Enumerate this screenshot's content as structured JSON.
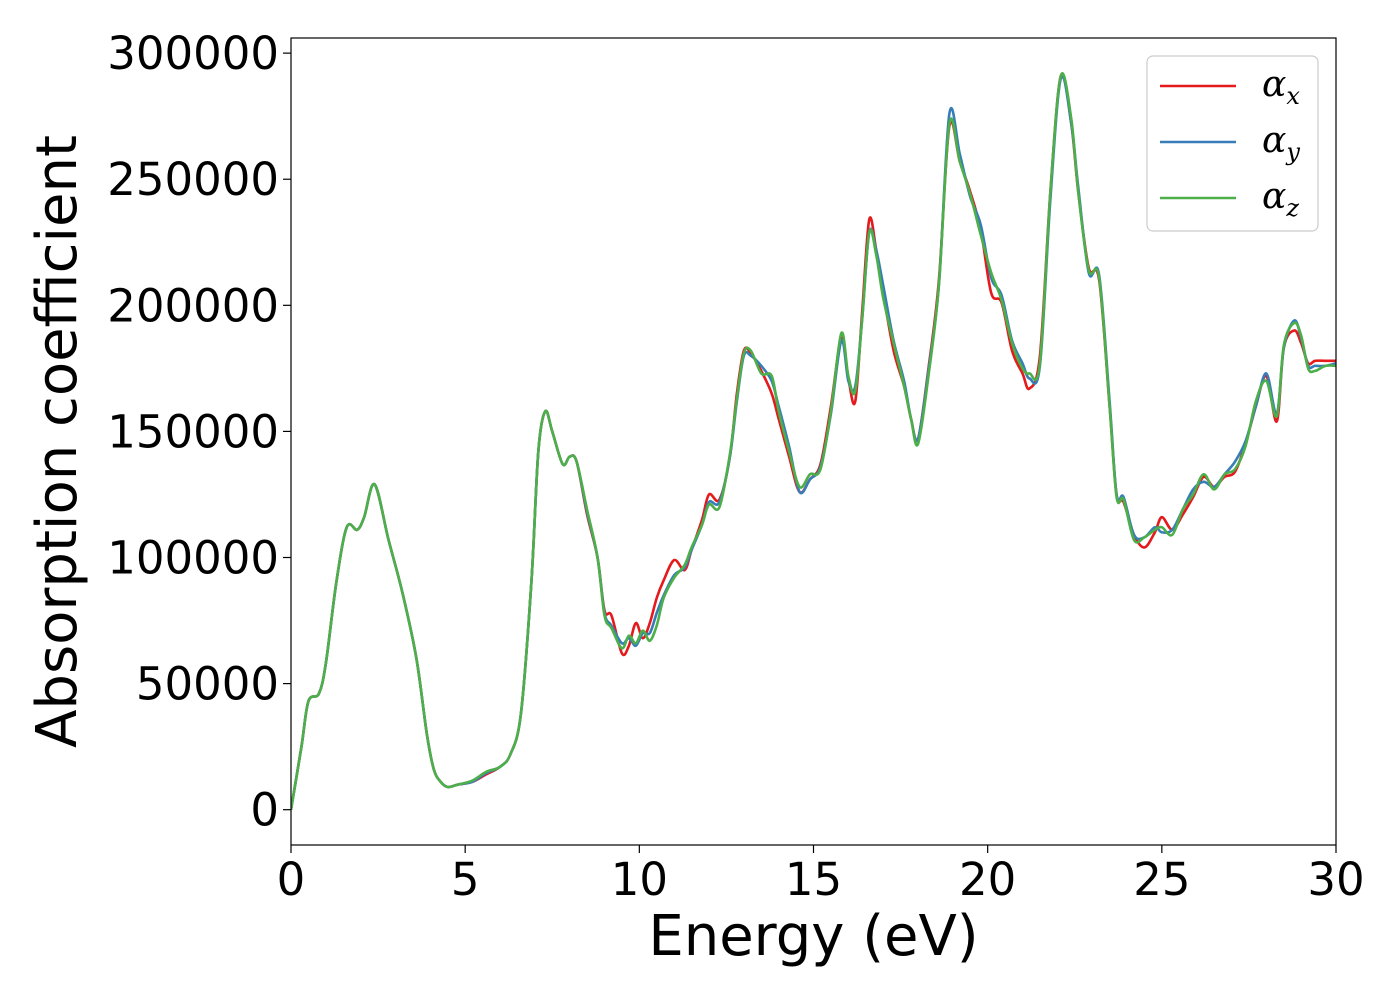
{
  "chart_data": {
    "type": "line",
    "title": "",
    "xlabel": "Energy (eV)",
    "ylabel": "Absorption coefficient",
    "xlim": [
      0,
      30
    ],
    "ylim": [
      -14000,
      306000
    ],
    "xticks": [
      0,
      5,
      10,
      15,
      20,
      25,
      30
    ],
    "yticks": [
      0,
      50000,
      100000,
      150000,
      200000,
      250000,
      300000
    ],
    "grid": false,
    "legend_position": "top-right",
    "colors": {
      "x": "#e41a1c",
      "y": "#377eb8",
      "z": "#4daf4a"
    },
    "series": [
      {
        "name": "αx",
        "symbol": "α",
        "subscript": "x",
        "color": "#e41a1c",
        "x": [
          0,
          0.3,
          0.5,
          0.8,
          1.0,
          1.3,
          1.6,
          1.9,
          2.1,
          2.4,
          2.8,
          3.2,
          3.6,
          3.9,
          4.1,
          4.3,
          4.5,
          4.8,
          5.2,
          5.6,
          6.0,
          6.3,
          6.6,
          6.9,
          7.1,
          7.3,
          7.5,
          7.8,
          8.0,
          8.2,
          8.5,
          8.8,
          9.0,
          9.2,
          9.5,
          9.7,
          9.9,
          10.1,
          10.3,
          10.5,
          10.7,
          11.0,
          11.3,
          11.5,
          11.8,
          12.0,
          12.3,
          12.6,
          12.8,
          13.0,
          13.2,
          13.5,
          13.8,
          14.0,
          14.3,
          14.6,
          14.9,
          15.2,
          15.5,
          15.8,
          16.0,
          16.2,
          16.4,
          16.6,
          16.8,
          17.0,
          17.3,
          17.6,
          17.8,
          18.0,
          18.3,
          18.6,
          18.9,
          19.2,
          19.5,
          19.8,
          20.1,
          20.4,
          20.7,
          21.0,
          21.2,
          21.5,
          21.8,
          22.1,
          22.4,
          22.6,
          22.9,
          23.2,
          23.5,
          23.7,
          23.9,
          24.2,
          24.5,
          24.8,
          25.0,
          25.3,
          25.6,
          25.9,
          26.2,
          26.5,
          26.8,
          27.1,
          27.4,
          27.7,
          28.0,
          28.3,
          28.5,
          28.8,
          29.0,
          29.2,
          29.4,
          29.7,
          30.0
        ],
        "y": [
          0,
          25000,
          43000,
          46000,
          58000,
          90000,
          112000,
          111000,
          116000,
          129000,
          107000,
          86000,
          60000,
          30000,
          16000,
          11000,
          9000,
          10000,
          11000,
          14000,
          17000,
          22000,
          38000,
          90000,
          142000,
          158000,
          150000,
          137000,
          140000,
          138000,
          117000,
          100000,
          79000,
          77000,
          62000,
          65000,
          74000,
          68000,
          74000,
          84000,
          91000,
          99000,
          95000,
          103000,
          115000,
          125000,
          123000,
          140000,
          165000,
          182000,
          181000,
          174000,
          165000,
          155000,
          140000,
          126000,
          131000,
          137000,
          160000,
          187000,
          171000,
          162000,
          198000,
          234000,
          222000,
          205000,
          182000,
          168000,
          155000,
          147000,
          175000,
          210000,
          271000,
          257000,
          245000,
          230000,
          205000,
          201000,
          182000,
          173000,
          167000,
          180000,
          245000,
          291000,
          272000,
          245000,
          215000,
          210000,
          160000,
          125000,
          122000,
          109000,
          104000,
          110000,
          116000,
          111000,
          117000,
          124000,
          132000,
          128000,
          132000,
          134000,
          145000,
          160000,
          172000,
          154000,
          183000,
          190000,
          185000,
          177000,
          178000,
          178000,
          178000
        ]
      },
      {
        "name": "αy",
        "symbol": "α",
        "subscript": "y",
        "color": "#377eb8",
        "x": [
          0,
          0.3,
          0.5,
          0.8,
          1.0,
          1.3,
          1.6,
          1.9,
          2.1,
          2.4,
          2.8,
          3.2,
          3.6,
          3.9,
          4.1,
          4.3,
          4.5,
          4.8,
          5.2,
          5.6,
          6.0,
          6.3,
          6.6,
          6.9,
          7.1,
          7.3,
          7.5,
          7.8,
          8.0,
          8.2,
          8.5,
          8.8,
          9.0,
          9.2,
          9.5,
          9.7,
          9.9,
          10.1,
          10.3,
          10.5,
          10.7,
          11.0,
          11.3,
          11.5,
          11.8,
          12.0,
          12.3,
          12.6,
          12.8,
          13.0,
          13.2,
          13.5,
          13.8,
          14.0,
          14.3,
          14.6,
          14.9,
          15.2,
          15.5,
          15.8,
          16.0,
          16.2,
          16.4,
          16.6,
          16.8,
          17.0,
          17.3,
          17.6,
          17.8,
          18.0,
          18.3,
          18.6,
          18.9,
          19.2,
          19.5,
          19.8,
          20.1,
          20.4,
          20.7,
          21.0,
          21.2,
          21.5,
          21.8,
          22.1,
          22.4,
          22.6,
          22.9,
          23.2,
          23.5,
          23.7,
          23.9,
          24.2,
          24.5,
          24.8,
          25.0,
          25.3,
          25.6,
          25.9,
          26.2,
          26.5,
          26.8,
          27.1,
          27.4,
          27.7,
          28.0,
          28.3,
          28.5,
          28.8,
          29.0,
          29.2,
          29.4,
          29.7,
          30.0
        ],
        "y": [
          0,
          25000,
          43000,
          46000,
          58000,
          90000,
          112000,
          111000,
          116000,
          129000,
          107000,
          86000,
          60000,
          30000,
          16000,
          11000,
          9000,
          10000,
          11000,
          14500,
          17000,
          22000,
          38000,
          90000,
          142000,
          158000,
          150000,
          137000,
          140000,
          138000,
          118000,
          100000,
          78000,
          73000,
          66000,
          68000,
          65000,
          70000,
          70000,
          78000,
          85000,
          93000,
          96000,
          103000,
          113000,
          122000,
          122000,
          140000,
          162000,
          180000,
          180000,
          176000,
          170000,
          160000,
          144000,
          126000,
          131000,
          136000,
          157000,
          186000,
          170000,
          168000,
          195000,
          229000,
          222000,
          208000,
          186000,
          170000,
          155000,
          147000,
          174000,
          208000,
          276000,
          260000,
          243000,
          232000,
          211000,
          204000,
          186000,
          177000,
          171000,
          176000,
          242000,
          290000,
          272000,
          247000,
          213000,
          212000,
          162000,
          125000,
          124000,
          109000,
          108000,
          112000,
          110000,
          111000,
          119000,
          127000,
          130000,
          128000,
          133000,
          138000,
          146000,
          160000,
          173000,
          157000,
          183000,
          194000,
          187000,
          176000,
          176000,
          176000,
          177000
        ]
      },
      {
        "name": "αz",
        "symbol": "α",
        "subscript": "z",
        "color": "#4daf4a",
        "x": [
          0,
          0.3,
          0.5,
          0.8,
          1.0,
          1.3,
          1.6,
          1.9,
          2.1,
          2.4,
          2.8,
          3.2,
          3.6,
          3.9,
          4.1,
          4.3,
          4.5,
          4.8,
          5.2,
          5.6,
          6.0,
          6.3,
          6.6,
          6.9,
          7.1,
          7.3,
          7.5,
          7.8,
          8.0,
          8.2,
          8.5,
          8.8,
          9.0,
          9.2,
          9.5,
          9.7,
          9.9,
          10.1,
          10.3,
          10.5,
          10.7,
          11.0,
          11.3,
          11.5,
          11.8,
          12.0,
          12.3,
          12.6,
          12.8,
          13.0,
          13.2,
          13.5,
          13.8,
          14.0,
          14.3,
          14.6,
          14.9,
          15.2,
          15.5,
          15.8,
          16.0,
          16.2,
          16.4,
          16.6,
          16.8,
          17.0,
          17.3,
          17.6,
          17.8,
          18.0,
          18.3,
          18.6,
          18.9,
          19.2,
          19.5,
          19.8,
          20.1,
          20.4,
          20.7,
          21.0,
          21.2,
          21.5,
          21.8,
          22.1,
          22.4,
          22.6,
          22.9,
          23.2,
          23.5,
          23.7,
          23.9,
          24.2,
          24.5,
          24.8,
          25.0,
          25.3,
          25.6,
          25.9,
          26.2,
          26.5,
          26.8,
          27.1,
          27.4,
          27.7,
          28.0,
          28.3,
          28.5,
          28.8,
          29.0,
          29.2,
          29.4,
          29.7,
          30.0
        ],
        "y": [
          0,
          25000,
          43000,
          46000,
          58000,
          90000,
          112000,
          111000,
          116000,
          129000,
          107000,
          86000,
          60000,
          30000,
          16000,
          11000,
          9000,
          10000,
          11500,
          15000,
          17000,
          22000,
          38000,
          90000,
          142000,
          158000,
          150000,
          137000,
          140000,
          138000,
          119000,
          100000,
          77000,
          72000,
          64000,
          69000,
          66000,
          71000,
          67000,
          73000,
          84000,
          92000,
          97000,
          104000,
          113000,
          121000,
          120000,
          141000,
          163000,
          181000,
          182000,
          173000,
          172000,
          158000,
          142000,
          128000,
          133000,
          135000,
          158000,
          189000,
          172000,
          166000,
          195000,
          229000,
          220000,
          203000,
          185000,
          168000,
          155000,
          145000,
          172000,
          208000,
          272000,
          257000,
          244000,
          228000,
          213000,
          202000,
          185000,
          175000,
          173000,
          177000,
          245000,
          291000,
          274000,
          245000,
          214000,
          211000,
          160000,
          124000,
          123000,
          107000,
          108000,
          111000,
          112000,
          109000,
          119000,
          125000,
          133000,
          127000,
          133000,
          135000,
          144000,
          162000,
          170000,
          156000,
          184000,
          193000,
          188000,
          175000,
          174000,
          176000,
          176000
        ]
      }
    ]
  }
}
